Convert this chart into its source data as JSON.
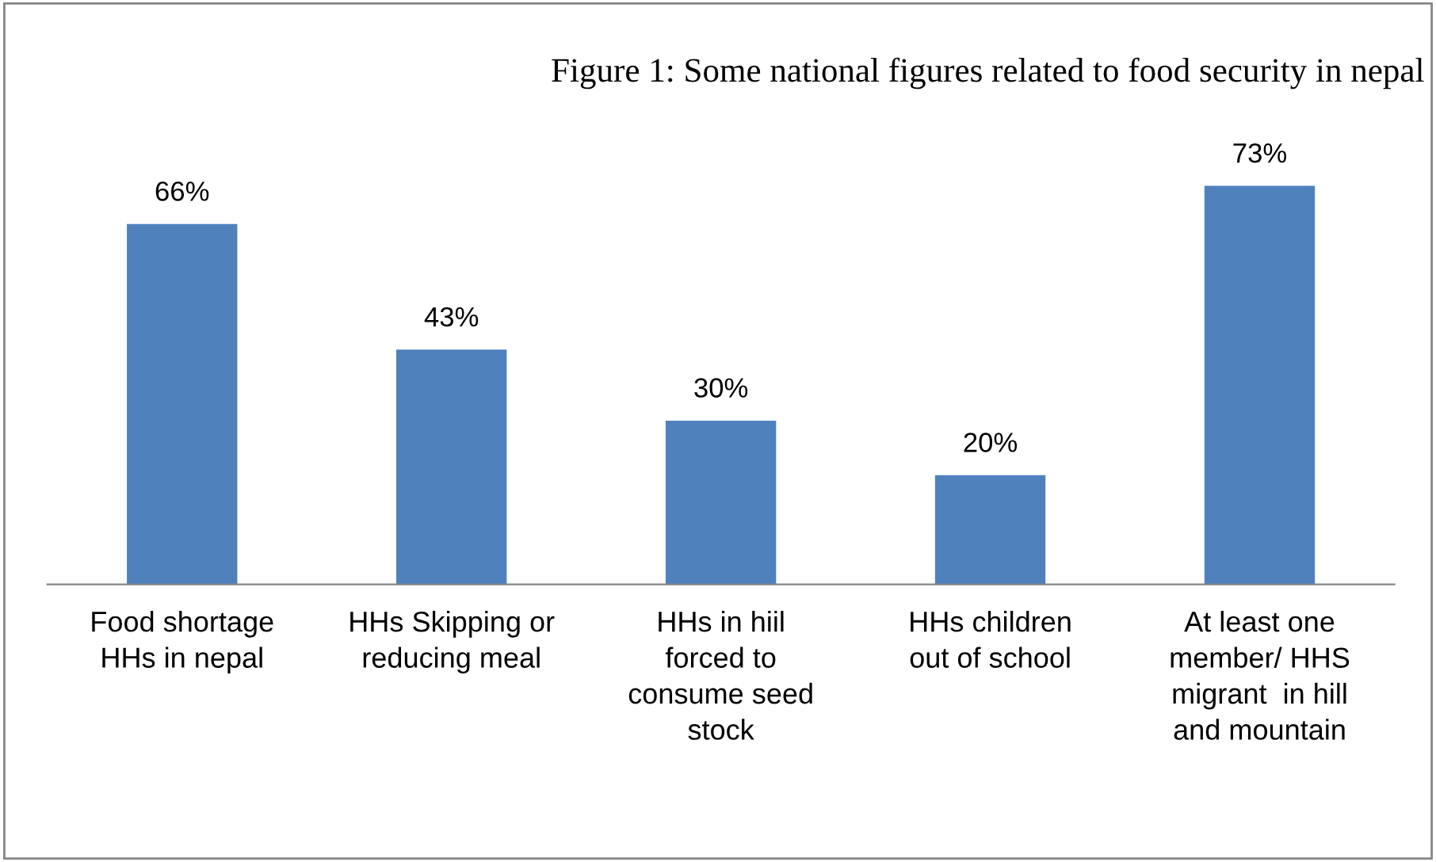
{
  "chart_data": {
    "type": "bar",
    "title": "Figure 1: Some national figures related to food security in nepal",
    "categories": [
      "Food shortage\nHHs in nepal",
      "HHs Skipping or\nreducing meal",
      "HHs in hiil\nforced to\nconsume seed\nstock",
      "HHs children\nout of school",
      "At least one\nmember/ HHS\nmigrant  in hill\nand mountain"
    ],
    "values": [
      66,
      43,
      30,
      20,
      73
    ],
    "value_labels": [
      "66%",
      "43%",
      "30%",
      "20%",
      "73%"
    ],
    "color": "#4f81bd",
    "grid": false
  }
}
